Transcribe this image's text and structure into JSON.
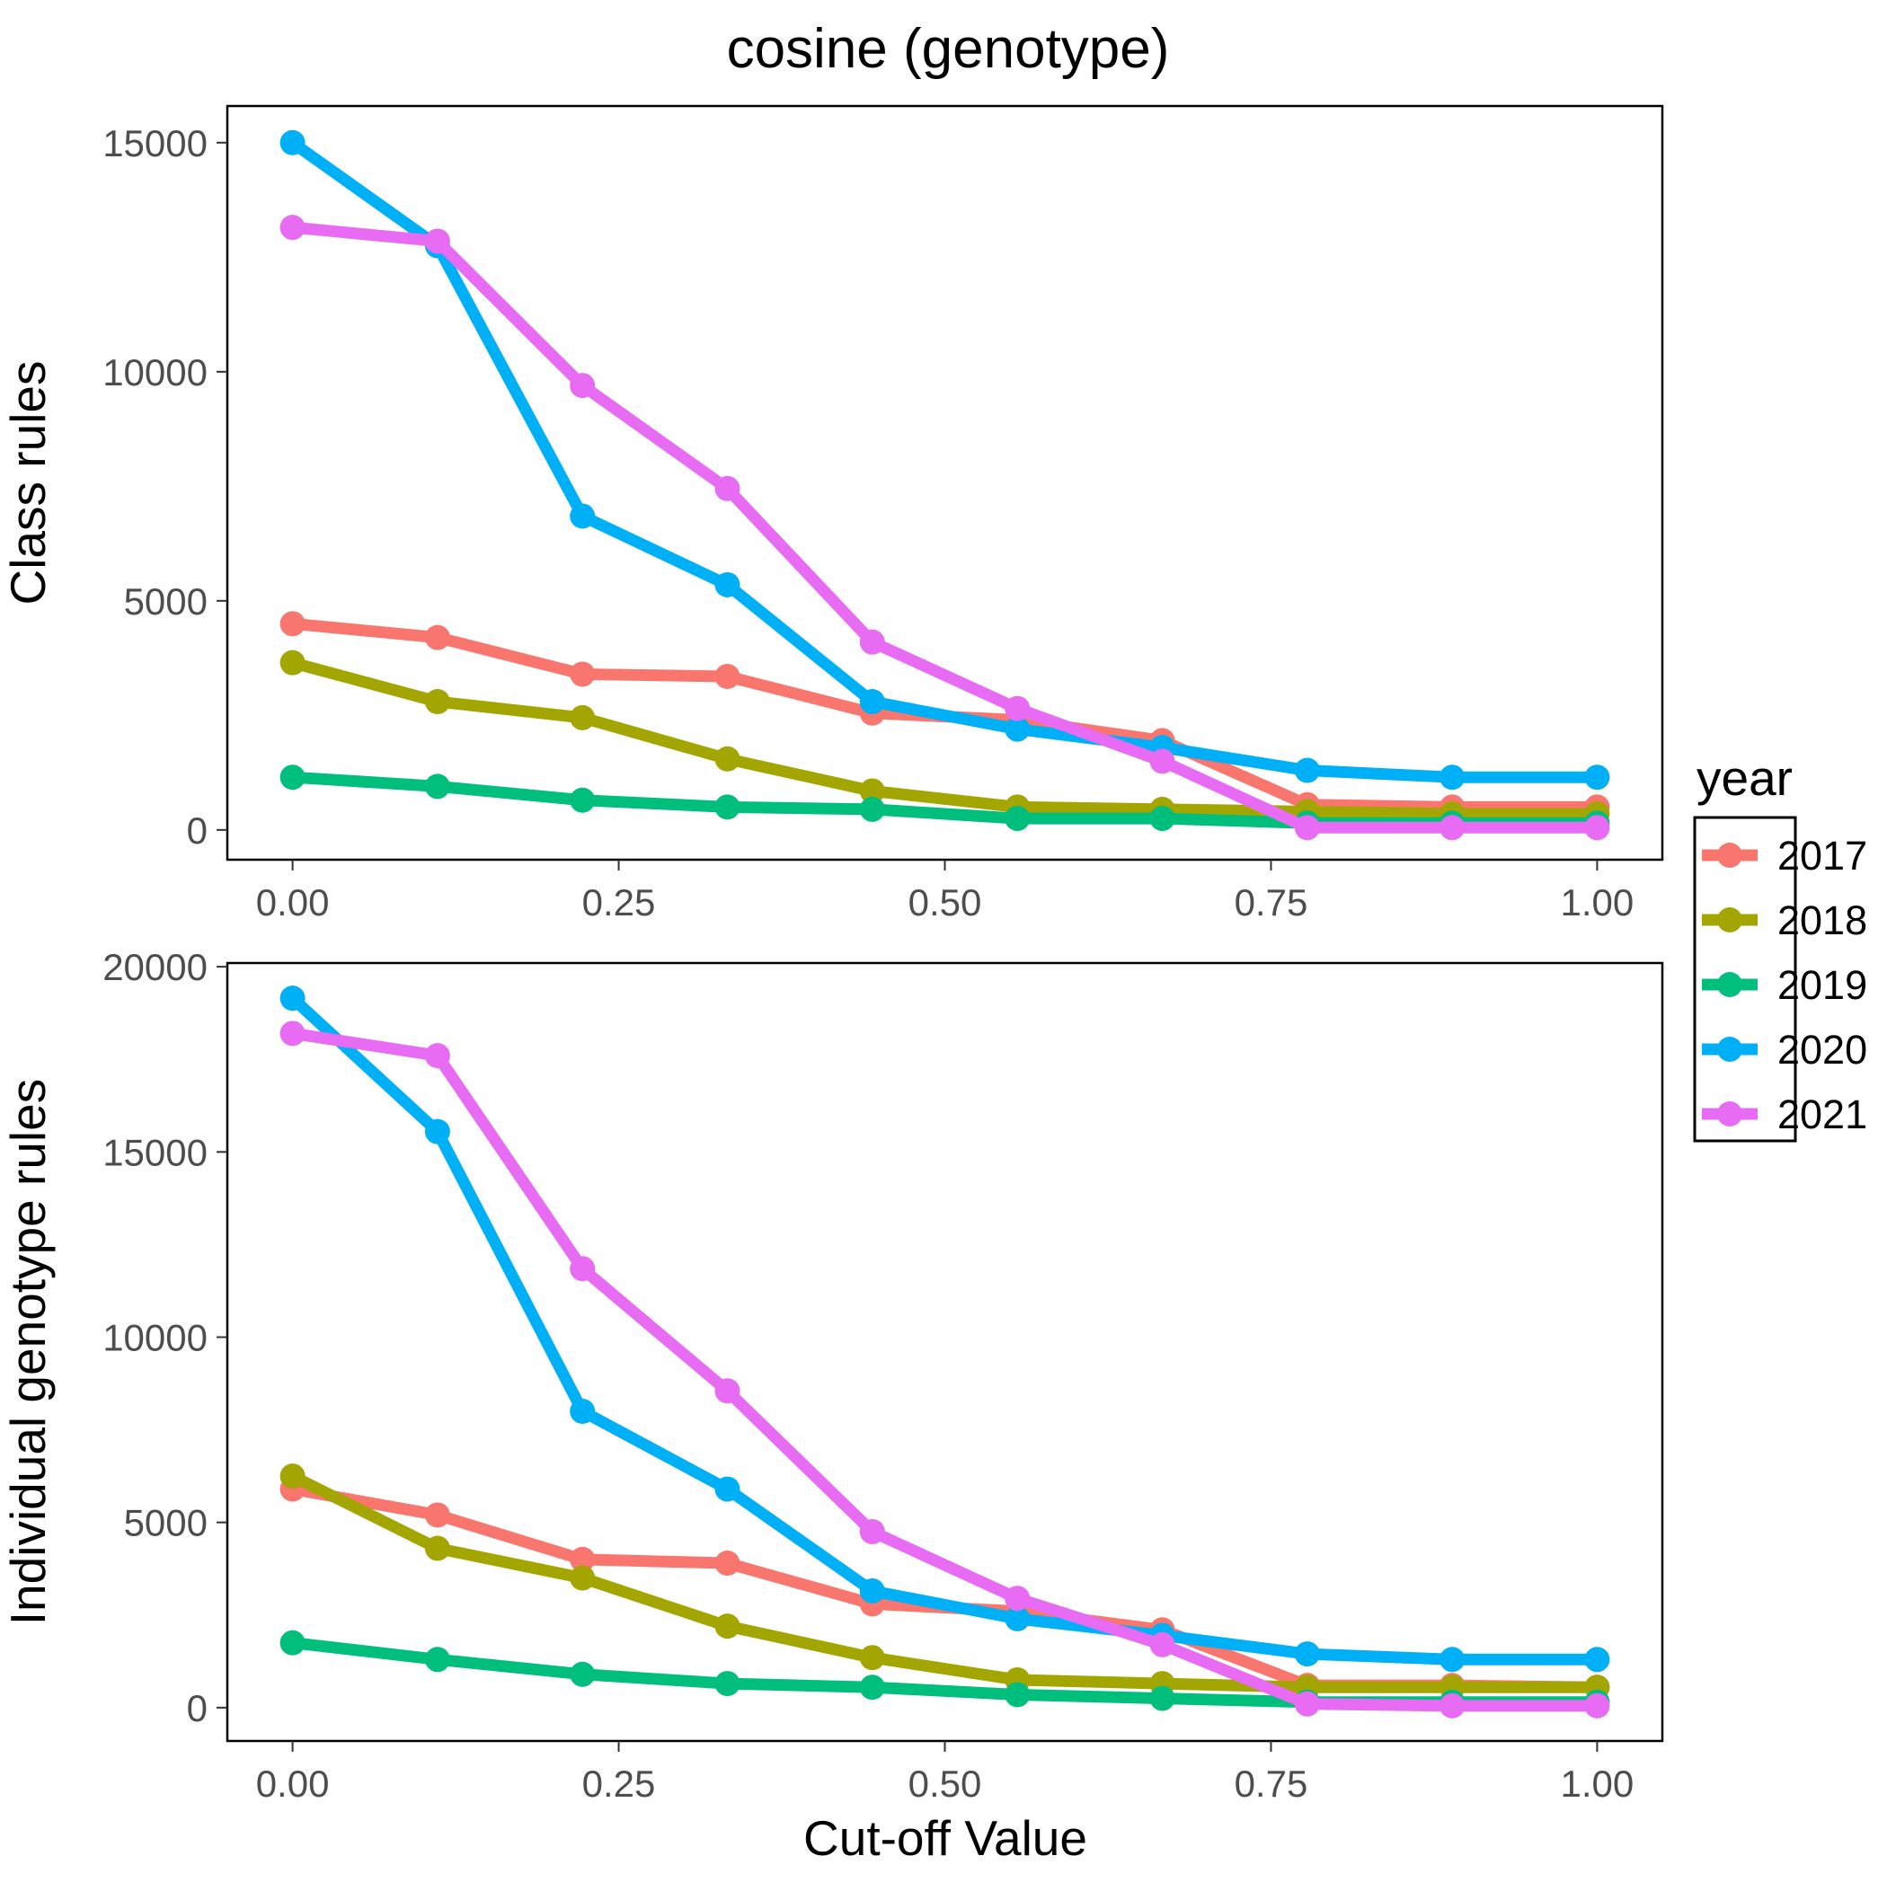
{
  "title": "cosine (genotype)",
  "legend": {
    "title": "year",
    "placement": "right",
    "entries": [
      "2017",
      "2018",
      "2019",
      "2020",
      "2021"
    ]
  },
  "colors": {
    "2017": "#F8766D",
    "2018": "#A3A500",
    "2019": "#00BF7D",
    "2020": "#00B0F6",
    "2021": "#E76BF3"
  },
  "xlabel": "Cut-off Value",
  "chart_data": [
    {
      "type": "line",
      "ylabel": "Class rules",
      "x": [
        0,
        0.1111,
        0.2222,
        0.3333,
        0.4444,
        0.5556,
        0.6667,
        0.7778,
        0.8889,
        1.0
      ],
      "xlim": [
        -0.05,
        1.05
      ],
      "ylim": [
        -650,
        15800
      ],
      "xticks": [
        "0.00",
        "0.25",
        "0.50",
        "0.75",
        "1.00"
      ],
      "yticks": [
        "0",
        "5000",
        "10000",
        "15000"
      ],
      "grid": false,
      "series": [
        {
          "name": "2017",
          "values": [
            4500,
            4200,
            3400,
            3350,
            2550,
            2400,
            1950,
            550,
            500,
            500
          ]
        },
        {
          "name": "2018",
          "values": [
            3650,
            2800,
            2450,
            1550,
            850,
            500,
            450,
            400,
            350,
            350
          ]
        },
        {
          "name": "2019",
          "values": [
            1150,
            950,
            650,
            500,
            450,
            250,
            250,
            150,
            150,
            150
          ]
        },
        {
          "name": "2020",
          "values": [
            15000,
            12750,
            6850,
            5350,
            2800,
            2200,
            1800,
            1300,
            1150,
            1150
          ]
        },
        {
          "name": "2021",
          "values": [
            13150,
            12850,
            9700,
            7450,
            4100,
            2650,
            1500,
            50,
            50,
            50
          ]
        }
      ]
    },
    {
      "type": "line",
      "ylabel": "Individual genotype rules",
      "x": [
        0,
        0.1111,
        0.2222,
        0.3333,
        0.4444,
        0.5556,
        0.6667,
        0.7778,
        0.8889,
        1.0
      ],
      "xlim": [
        -0.05,
        1.05
      ],
      "ylim": [
        -900,
        20100
      ],
      "xticks": [
        "0.00",
        "0.25",
        "0.50",
        "0.75",
        "1.00"
      ],
      "yticks": [
        "0",
        "5000",
        "10000",
        "15000",
        "20000"
      ],
      "grid": false,
      "series": [
        {
          "name": "2017",
          "values": [
            5900,
            5200,
            4000,
            3900,
            2800,
            2600,
            2100,
            600,
            600,
            550
          ]
        },
        {
          "name": "2018",
          "values": [
            6250,
            4300,
            3500,
            2200,
            1350,
            750,
            650,
            550,
            550,
            550
          ]
        },
        {
          "name": "2019",
          "values": [
            1750,
            1300,
            900,
            650,
            550,
            350,
            250,
            150,
            150,
            150
          ]
        },
        {
          "name": "2020",
          "values": [
            19150,
            15550,
            8000,
            5900,
            3150,
            2400,
            1950,
            1450,
            1300,
            1300
          ]
        },
        {
          "name": "2021",
          "values": [
            18200,
            17600,
            11850,
            8550,
            4750,
            2950,
            1700,
            100,
            50,
            50
          ]
        }
      ]
    }
  ]
}
